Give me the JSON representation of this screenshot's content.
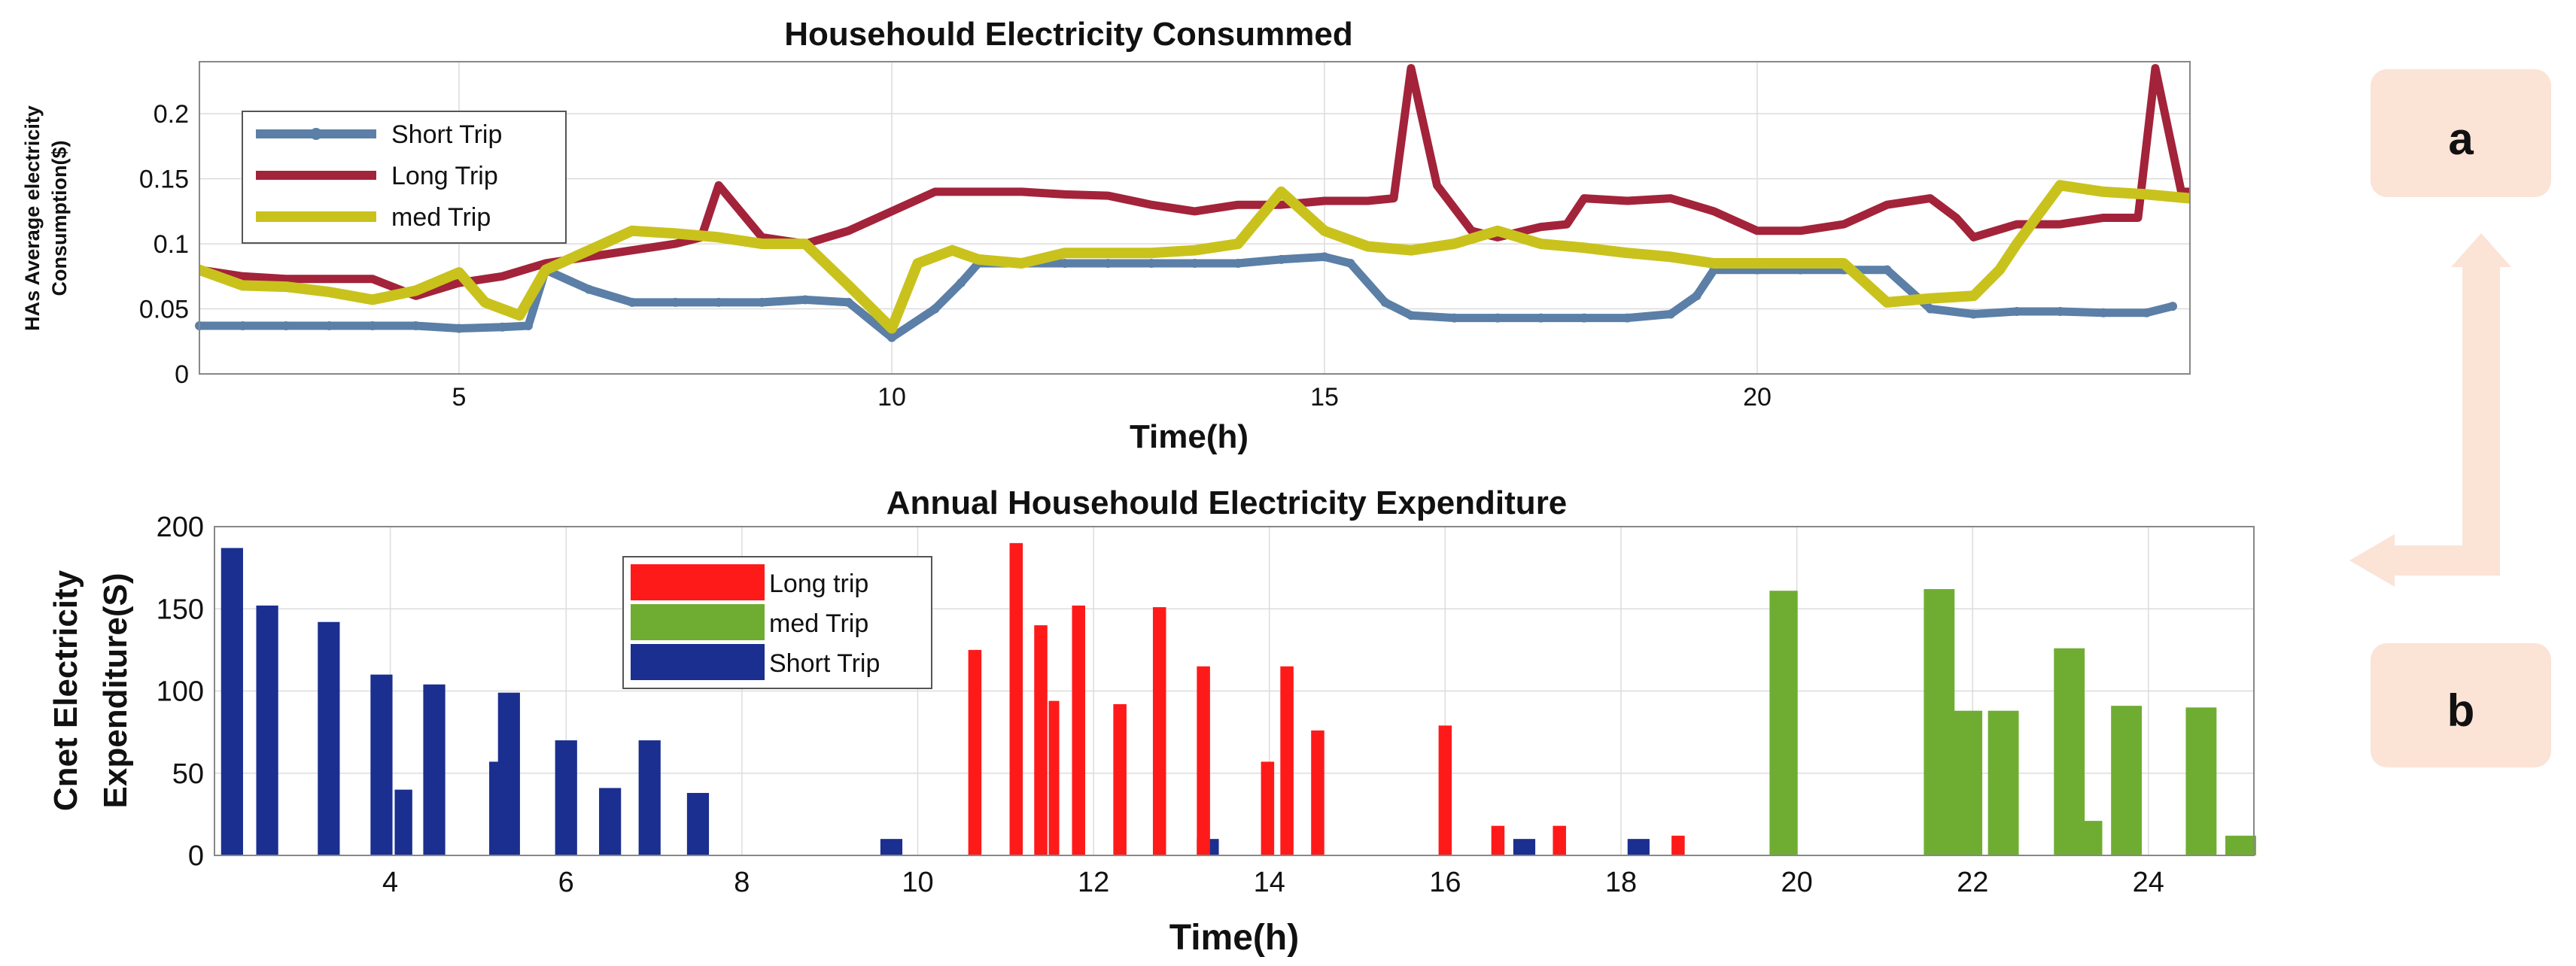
{
  "colors": {
    "short": "#5b7fa6",
    "long": "#a3233a",
    "med": "#c9c21d",
    "bar_long": "#ff1a1a",
    "bar_med": "#6fad32",
    "bar_short": "#1a2f8f",
    "panel_box": "#fbe3d6",
    "arrow": "#fbe3d6",
    "grid": "#dcdcdc"
  },
  "panels": {
    "a_label": "a",
    "b_label": "b"
  },
  "chart_data": [
    {
      "type": "line",
      "title": "Househould Electricity Consummed",
      "xlabel": "Time(h)",
      "ylabel_line1": "HAs Average electricity",
      "ylabel_line2": "Consumption($)",
      "xlim": [
        2,
        25
      ],
      "ylim": [
        0,
        0.24
      ],
      "xticks": [
        5,
        10,
        15,
        20
      ],
      "yticks": [
        0,
        0.05,
        0.1,
        0.15,
        0.2
      ],
      "ytick_labels": [
        "0",
        "0.05",
        "0.1",
        "0.15",
        "0.2"
      ],
      "legend_position": "top-left",
      "series": [
        {
          "name": "Short Trip",
          "key": "short",
          "x": [
            2,
            2.5,
            3,
            3.5,
            4,
            4.5,
            5,
            5.5,
            5.8,
            6,
            6.5,
            7,
            7.5,
            8,
            8.5,
            9,
            9.5,
            10,
            10.5,
            10.8,
            11,
            11.5,
            12,
            12.5,
            13,
            13.5,
            14,
            14.5,
            15,
            15.3,
            15.7,
            16,
            16.5,
            17,
            17.5,
            18,
            18.5,
            19,
            19.3,
            19.5,
            20,
            20.5,
            21,
            21.5,
            22,
            22.5,
            23,
            23.5,
            24,
            24.5,
            24.8
          ],
          "values": [
            0.037,
            0.037,
            0.037,
            0.037,
            0.037,
            0.037,
            0.035,
            0.036,
            0.037,
            0.08,
            0.065,
            0.055,
            0.055,
            0.055,
            0.055,
            0.057,
            0.055,
            0.028,
            0.05,
            0.07,
            0.085,
            0.085,
            0.085,
            0.085,
            0.085,
            0.085,
            0.085,
            0.088,
            0.09,
            0.085,
            0.055,
            0.045,
            0.043,
            0.043,
            0.043,
            0.043,
            0.043,
            0.046,
            0.06,
            0.08,
            0.08,
            0.08,
            0.08,
            0.08,
            0.05,
            0.046,
            0.048,
            0.048,
            0.047,
            0.047,
            0.052
          ]
        },
        {
          "name": "Long Trip",
          "key": "long",
          "x": [
            2,
            2.5,
            3,
            3.5,
            4,
            4.5,
            5,
            5.5,
            6,
            6.5,
            7,
            7.5,
            7.8,
            8,
            8.5,
            9,
            9.5,
            10,
            10.5,
            11,
            11.5,
            12,
            12.5,
            13,
            13.5,
            14,
            14.5,
            15,
            15.5,
            15.8,
            16,
            16.3,
            16.7,
            17,
            17.5,
            17.8,
            18,
            18.5,
            19,
            19.5,
            20,
            20.5,
            21,
            21.5,
            22,
            22.3,
            22.5,
            23,
            23.5,
            24,
            24.4,
            24.6,
            24.9,
            25
          ],
          "values": [
            0.08,
            0.075,
            0.073,
            0.073,
            0.073,
            0.06,
            0.07,
            0.075,
            0.085,
            0.09,
            0.095,
            0.1,
            0.105,
            0.145,
            0.105,
            0.1,
            0.11,
            0.125,
            0.14,
            0.14,
            0.14,
            0.138,
            0.137,
            0.13,
            0.125,
            0.13,
            0.13,
            0.133,
            0.133,
            0.135,
            0.235,
            0.145,
            0.11,
            0.105,
            0.113,
            0.115,
            0.135,
            0.133,
            0.135,
            0.125,
            0.11,
            0.11,
            0.115,
            0.13,
            0.135,
            0.12,
            0.105,
            0.115,
            0.115,
            0.12,
            0.12,
            0.235,
            0.14,
            0.14
          ]
        },
        {
          "name": "med Trip",
          "key": "med",
          "x": [
            2,
            2.5,
            3,
            3.5,
            4,
            4.5,
            5,
            5.3,
            5.7,
            6,
            6.5,
            7,
            7.5,
            8,
            8.5,
            9,
            9.5,
            10,
            10.3,
            10.7,
            11,
            11.5,
            12,
            12.5,
            13,
            13.5,
            14,
            14.5,
            15,
            15.5,
            16,
            16.5,
            17,
            17.5,
            18,
            18.5,
            19,
            19.5,
            20,
            20.5,
            21,
            21.5,
            22,
            22.5,
            22.8,
            23,
            23.5,
            24,
            24.5,
            25
          ],
          "values": [
            0.08,
            0.068,
            0.067,
            0.063,
            0.057,
            0.064,
            0.078,
            0.055,
            0.045,
            0.08,
            0.095,
            0.11,
            0.108,
            0.105,
            0.1,
            0.1,
            0.068,
            0.035,
            0.085,
            0.095,
            0.088,
            0.085,
            0.093,
            0.093,
            0.093,
            0.095,
            0.1,
            0.14,
            0.11,
            0.098,
            0.095,
            0.1,
            0.11,
            0.1,
            0.097,
            0.093,
            0.09,
            0.085,
            0.085,
            0.085,
            0.085,
            0.055,
            0.058,
            0.06,
            0.08,
            0.1,
            0.145,
            0.14,
            0.138,
            0.135
          ]
        }
      ]
    },
    {
      "type": "bar",
      "title": "Annual Househould Electricity Expenditure",
      "xlabel": "Time(h)",
      "ylabel_line1": "Cnet Electricity",
      "ylabel_line2": "Expenditure(S)",
      "xlim": [
        2,
        25.2
      ],
      "ylim": [
        0,
        200
      ],
      "xticks": [
        4,
        6,
        8,
        10,
        12,
        14,
        16,
        18,
        20,
        22,
        24
      ],
      "yticks": [
        0,
        50,
        100,
        150,
        200
      ],
      "legend_position": "top-center",
      "legend": [
        "Long trip",
        "med Trip",
        "Short Trip"
      ],
      "series": [
        {
          "name": "Short Trip",
          "key": "bar_short",
          "x": [
            2.2,
            2.6,
            3.3,
            3.9,
            4.15,
            4.5,
            5.2,
            5.35,
            6.0,
            6.5,
            6.95,
            7.5,
            9.7,
            13.3,
            16.9,
            18.2
          ],
          "values": [
            187,
            152,
            142,
            110,
            40,
            104,
            57,
            99,
            70,
            41,
            70,
            38,
            10,
            10,
            10,
            10
          ],
          "widths": [
            0.25,
            0.25,
            0.25,
            0.25,
            0.2,
            0.25,
            0.15,
            0.25,
            0.25,
            0.25,
            0.25,
            0.25,
            0.25,
            0.25,
            0.25,
            0.25
          ]
        },
        {
          "name": "Long trip",
          "key": "bar_long",
          "x": [
            10.65,
            11.12,
            11.4,
            11.55,
            11.83,
            12.3,
            12.75,
            13.25,
            13.98,
            14.2,
            14.55,
            16.0,
            16.6,
            17.3,
            18.65
          ],
          "values": [
            125,
            190,
            140,
            94,
            152,
            92,
            151,
            115,
            57,
            115,
            76,
            79,
            18,
            18,
            12
          ],
          "widths": [
            0.15,
            0.15,
            0.15,
            0.12,
            0.15,
            0.15,
            0.15,
            0.15,
            0.15,
            0.15,
            0.15,
            0.15,
            0.15,
            0.15,
            0.15
          ]
        },
        {
          "name": "med Trip",
          "key": "bar_med",
          "x": [
            19.85,
            21.62,
            21.95,
            22.35,
            23.1,
            23.35,
            23.75,
            24.6,
            25.05
          ],
          "values": [
            161,
            162,
            88,
            88,
            126,
            21,
            91,
            90,
            12
          ],
          "widths": [
            0.32,
            0.35,
            0.32,
            0.35,
            0.35,
            0.25,
            0.35,
            0.35,
            0.35
          ]
        }
      ]
    }
  ]
}
